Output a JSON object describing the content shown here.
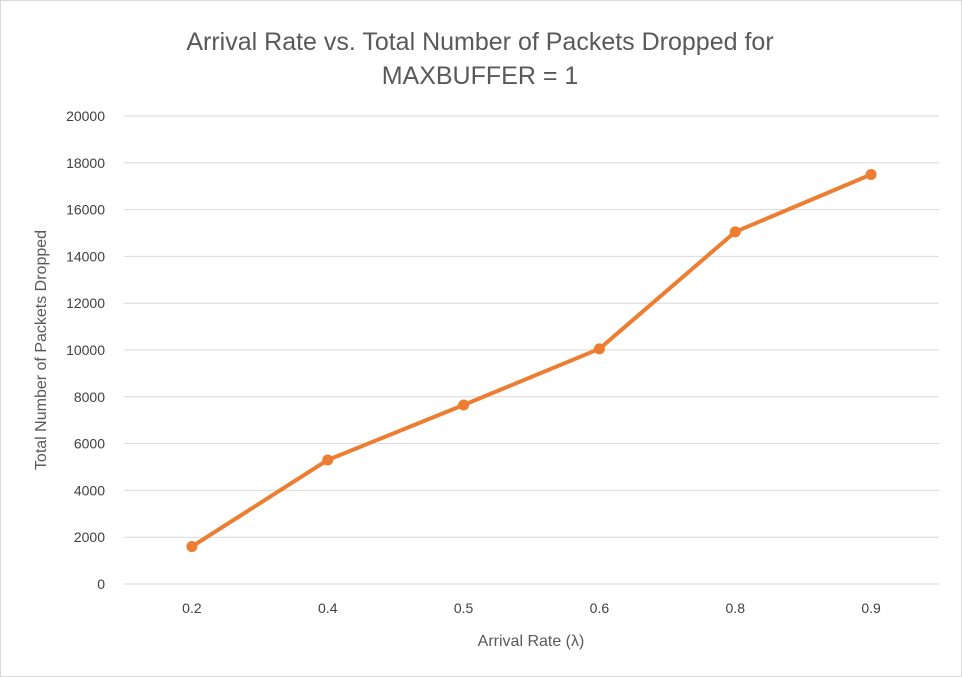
{
  "chart_data": {
    "type": "line",
    "title_lines": [
      "Arrival Rate vs. Total Number of Packets Dropped for",
      "MAXBUFFER = 1"
    ],
    "xlabel": "Arrival Rate (λ)",
    "ylabel": "Total Number of Packets Dropped",
    "categories": [
      "0.2",
      "0.4",
      "0.5",
      "0.6",
      "0.8",
      "0.9"
    ],
    "series": [
      {
        "values": [
          1600,
          5300,
          7650,
          10050,
          15050,
          17500
        ]
      }
    ],
    "ylim": [
      0,
      20000
    ],
    "yticks": [
      "0",
      "2000",
      "4000",
      "6000",
      "8000",
      "10000",
      "12000",
      "14000",
      "16000",
      "18000",
      "20000"
    ],
    "grid": true,
    "legend": "none",
    "colors": {
      "line": "#ED7D31",
      "grid": "#D9D9D9",
      "text": "#595959",
      "tick_text": "#404040",
      "border": "#D9D9D9"
    }
  }
}
